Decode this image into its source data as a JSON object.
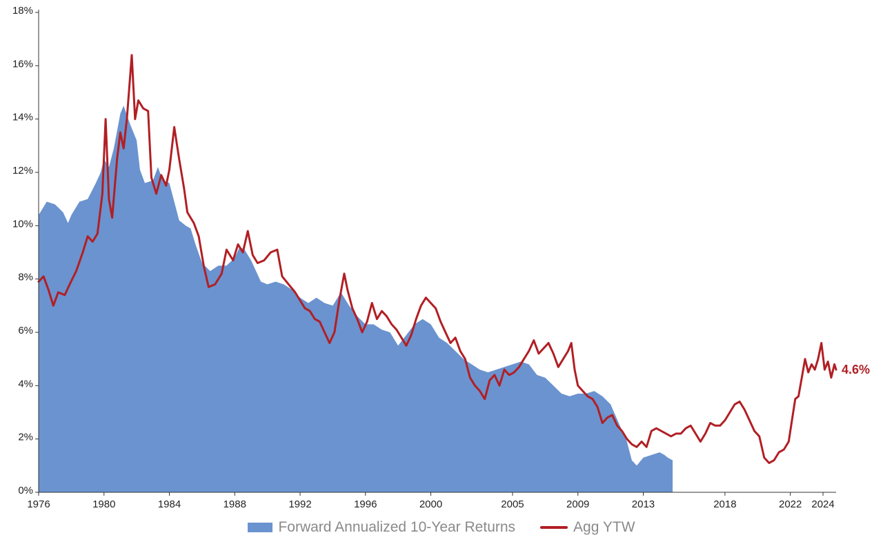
{
  "chart_data": {
    "type": "area+line",
    "title": "",
    "xlabel": "",
    "ylabel": "",
    "y_axis": {
      "min": 0,
      "max": 18,
      "ticks": [
        0,
        2,
        4,
        6,
        8,
        10,
        12,
        14,
        16,
        18
      ],
      "tick_labels": [
        "0%",
        "2%",
        "4%",
        "6%",
        "8%",
        "10%",
        "12%",
        "14%",
        "16%",
        "18%"
      ],
      "unit": "%"
    },
    "x_axis": {
      "min": 1976,
      "max": 2024.8,
      "tick_years": [
        1976,
        1980,
        1984,
        1988,
        1992,
        1996,
        2000,
        2005,
        2009,
        2013,
        2018,
        2022,
        2024
      ],
      "tick_labels": [
        "1976",
        "1980",
        "1984",
        "1988",
        "1992",
        "1996",
        "2000",
        "2005",
        "2009",
        "2013",
        "2018",
        "2022",
        "2024"
      ]
    },
    "grid": false,
    "legend_position": "bottom-center",
    "colors": {
      "area": "#6b93cf",
      "line": "#b11f24"
    },
    "series": [
      {
        "name": "Forward Annualized 10-Year Returns",
        "type": "area",
        "points": [
          [
            1976.0,
            10.4
          ],
          [
            1976.5,
            10.9
          ],
          [
            1977.0,
            10.8
          ],
          [
            1977.5,
            10.5
          ],
          [
            1977.8,
            10.1
          ],
          [
            1978.0,
            10.4
          ],
          [
            1978.5,
            10.9
          ],
          [
            1979.0,
            11.0
          ],
          [
            1979.5,
            11.6
          ],
          [
            1979.8,
            12.0
          ],
          [
            1980.0,
            12.5
          ],
          [
            1980.3,
            12.2
          ],
          [
            1980.6,
            12.9
          ],
          [
            1981.0,
            14.2
          ],
          [
            1981.2,
            14.5
          ],
          [
            1981.6,
            13.8
          ],
          [
            1982.0,
            13.2
          ],
          [
            1982.2,
            12.1
          ],
          [
            1982.5,
            11.6
          ],
          [
            1983.0,
            11.7
          ],
          [
            1983.3,
            12.2
          ],
          [
            1983.6,
            11.7
          ],
          [
            1984.0,
            11.6
          ],
          [
            1984.3,
            10.9
          ],
          [
            1984.6,
            10.2
          ],
          [
            1985.0,
            10.0
          ],
          [
            1985.3,
            9.9
          ],
          [
            1985.6,
            9.3
          ],
          [
            1986.0,
            8.6
          ],
          [
            1986.5,
            8.3
          ],
          [
            1987.0,
            8.5
          ],
          [
            1987.5,
            8.5
          ],
          [
            1988.0,
            8.8
          ],
          [
            1988.3,
            9.2
          ],
          [
            1988.6,
            9.1
          ],
          [
            1989.0,
            8.7
          ],
          [
            1989.3,
            8.3
          ],
          [
            1989.6,
            7.9
          ],
          [
            1990.0,
            7.8
          ],
          [
            1990.5,
            7.9
          ],
          [
            1991.0,
            7.8
          ],
          [
            1991.5,
            7.6
          ],
          [
            1992.0,
            7.3
          ],
          [
            1992.5,
            7.1
          ],
          [
            1993.0,
            7.3
          ],
          [
            1993.5,
            7.1
          ],
          [
            1994.0,
            7.0
          ],
          [
            1994.5,
            7.5
          ],
          [
            1995.0,
            7.0
          ],
          [
            1995.5,
            6.6
          ],
          [
            1996.0,
            6.3
          ],
          [
            1996.5,
            6.3
          ],
          [
            1997.0,
            6.1
          ],
          [
            1997.5,
            6.0
          ],
          [
            1998.0,
            5.5
          ],
          [
            1998.5,
            5.9
          ],
          [
            1999.0,
            6.3
          ],
          [
            1999.5,
            6.5
          ],
          [
            2000.0,
            6.3
          ],
          [
            2000.5,
            5.8
          ],
          [
            2001.0,
            5.6
          ],
          [
            2001.5,
            5.3
          ],
          [
            2002.0,
            5.0
          ],
          [
            2002.5,
            4.8
          ],
          [
            2003.0,
            4.6
          ],
          [
            2003.5,
            4.5
          ],
          [
            2004.0,
            4.6
          ],
          [
            2004.5,
            4.7
          ],
          [
            2005.0,
            4.8
          ],
          [
            2005.5,
            4.9
          ],
          [
            2006.0,
            4.8
          ],
          [
            2006.5,
            4.4
          ],
          [
            2007.0,
            4.3
          ],
          [
            2007.5,
            4.0
          ],
          [
            2008.0,
            3.7
          ],
          [
            2008.5,
            3.6
          ],
          [
            2009.0,
            3.7
          ],
          [
            2009.5,
            3.7
          ],
          [
            2010.0,
            3.8
          ],
          [
            2010.5,
            3.6
          ],
          [
            2011.0,
            3.3
          ],
          [
            2011.5,
            2.6
          ],
          [
            2012.0,
            1.9
          ],
          [
            2012.3,
            1.2
          ],
          [
            2012.6,
            1.0
          ],
          [
            2013.0,
            1.3
          ],
          [
            2013.5,
            1.4
          ],
          [
            2014.0,
            1.5
          ],
          [
            2014.3,
            1.4
          ],
          [
            2014.5,
            1.3
          ],
          [
            2014.8,
            1.2
          ]
        ]
      },
      {
        "name": "Agg YTW",
        "type": "line",
        "end_label": "4.6%",
        "points": [
          [
            1976.0,
            7.9
          ],
          [
            1976.3,
            8.1
          ],
          [
            1976.6,
            7.6
          ],
          [
            1976.9,
            7.0
          ],
          [
            1977.2,
            7.5
          ],
          [
            1977.6,
            7.4
          ],
          [
            1977.9,
            7.8
          ],
          [
            1978.3,
            8.3
          ],
          [
            1978.7,
            9.0
          ],
          [
            1979.0,
            9.6
          ],
          [
            1979.3,
            9.4
          ],
          [
            1979.6,
            9.7
          ],
          [
            1979.9,
            11.2
          ],
          [
            1980.1,
            14.0
          ],
          [
            1980.3,
            11.0
          ],
          [
            1980.5,
            10.3
          ],
          [
            1980.8,
            12.5
          ],
          [
            1981.0,
            13.5
          ],
          [
            1981.2,
            12.9
          ],
          [
            1981.4,
            14.0
          ],
          [
            1981.7,
            16.4
          ],
          [
            1981.9,
            14.0
          ],
          [
            1982.1,
            14.7
          ],
          [
            1982.4,
            14.4
          ],
          [
            1982.7,
            14.3
          ],
          [
            1982.9,
            11.8
          ],
          [
            1983.2,
            11.2
          ],
          [
            1983.5,
            11.9
          ],
          [
            1983.8,
            11.5
          ],
          [
            1984.0,
            12.1
          ],
          [
            1984.3,
            13.7
          ],
          [
            1984.6,
            12.5
          ],
          [
            1984.9,
            11.4
          ],
          [
            1985.1,
            10.5
          ],
          [
            1985.5,
            10.1
          ],
          [
            1985.8,
            9.6
          ],
          [
            1986.1,
            8.5
          ],
          [
            1986.4,
            7.7
          ],
          [
            1986.8,
            7.8
          ],
          [
            1987.2,
            8.2
          ],
          [
            1987.5,
            9.1
          ],
          [
            1987.9,
            8.7
          ],
          [
            1988.2,
            9.3
          ],
          [
            1988.5,
            9.0
          ],
          [
            1988.8,
            9.8
          ],
          [
            1989.1,
            8.9
          ],
          [
            1989.4,
            8.6
          ],
          [
            1989.8,
            8.7
          ],
          [
            1990.2,
            9.0
          ],
          [
            1990.6,
            9.1
          ],
          [
            1990.9,
            8.1
          ],
          [
            1991.3,
            7.8
          ],
          [
            1991.7,
            7.5
          ],
          [
            1992.0,
            7.2
          ],
          [
            1992.3,
            6.9
          ],
          [
            1992.6,
            6.8
          ],
          [
            1992.9,
            6.5
          ],
          [
            1993.2,
            6.4
          ],
          [
            1993.5,
            6.0
          ],
          [
            1993.8,
            5.6
          ],
          [
            1994.1,
            6.0
          ],
          [
            1994.4,
            7.2
          ],
          [
            1994.7,
            8.2
          ],
          [
            1994.9,
            7.6
          ],
          [
            1995.2,
            6.9
          ],
          [
            1995.5,
            6.5
          ],
          [
            1995.8,
            6.0
          ],
          [
            1996.1,
            6.4
          ],
          [
            1996.4,
            7.1
          ],
          [
            1996.7,
            6.5
          ],
          [
            1997.0,
            6.8
          ],
          [
            1997.3,
            6.6
          ],
          [
            1997.6,
            6.3
          ],
          [
            1997.9,
            6.1
          ],
          [
            1998.2,
            5.8
          ],
          [
            1998.5,
            5.5
          ],
          [
            1998.8,
            5.9
          ],
          [
            1999.1,
            6.5
          ],
          [
            1999.4,
            7.0
          ],
          [
            1999.7,
            7.3
          ],
          [
            2000.0,
            7.1
          ],
          [
            2000.3,
            6.9
          ],
          [
            2000.6,
            6.4
          ],
          [
            2000.9,
            6.0
          ],
          [
            2001.2,
            5.6
          ],
          [
            2001.5,
            5.8
          ],
          [
            2001.8,
            5.3
          ],
          [
            2002.1,
            5.0
          ],
          [
            2002.4,
            4.3
          ],
          [
            2002.7,
            4.0
          ],
          [
            2003.0,
            3.8
          ],
          [
            2003.3,
            3.5
          ],
          [
            2003.6,
            4.2
          ],
          [
            2003.9,
            4.4
          ],
          [
            2004.2,
            4.0
          ],
          [
            2004.5,
            4.6
          ],
          [
            2004.8,
            4.4
          ],
          [
            2005.1,
            4.5
          ],
          [
            2005.4,
            4.7
          ],
          [
            2005.7,
            5.0
          ],
          [
            2006.0,
            5.3
          ],
          [
            2006.3,
            5.7
          ],
          [
            2006.6,
            5.2
          ],
          [
            2006.9,
            5.4
          ],
          [
            2007.2,
            5.6
          ],
          [
            2007.5,
            5.2
          ],
          [
            2007.8,
            4.7
          ],
          [
            2008.1,
            5.0
          ],
          [
            2008.4,
            5.3
          ],
          [
            2008.6,
            5.6
          ],
          [
            2008.8,
            4.6
          ],
          [
            2009.0,
            4.0
          ],
          [
            2009.3,
            3.8
          ],
          [
            2009.6,
            3.6
          ],
          [
            2009.9,
            3.5
          ],
          [
            2010.2,
            3.2
          ],
          [
            2010.5,
            2.6
          ],
          [
            2010.8,
            2.8
          ],
          [
            2011.1,
            2.9
          ],
          [
            2011.4,
            2.5
          ],
          [
            2011.7,
            2.3
          ],
          [
            2012.0,
            2.0
          ],
          [
            2012.3,
            1.8
          ],
          [
            2012.6,
            1.7
          ],
          [
            2012.9,
            1.9
          ],
          [
            2013.2,
            1.7
          ],
          [
            2013.5,
            2.3
          ],
          [
            2013.8,
            2.4
          ],
          [
            2014.1,
            2.3
          ],
          [
            2014.4,
            2.2
          ],
          [
            2014.7,
            2.1
          ],
          [
            2015.0,
            2.2
          ],
          [
            2015.3,
            2.2
          ],
          [
            2015.6,
            2.4
          ],
          [
            2015.9,
            2.5
          ],
          [
            2016.2,
            2.2
          ],
          [
            2016.5,
            1.9
          ],
          [
            2016.8,
            2.2
          ],
          [
            2017.1,
            2.6
          ],
          [
            2017.4,
            2.5
          ],
          [
            2017.7,
            2.5
          ],
          [
            2018.0,
            2.7
          ],
          [
            2018.3,
            3.0
          ],
          [
            2018.6,
            3.3
          ],
          [
            2018.9,
            3.4
          ],
          [
            2019.2,
            3.1
          ],
          [
            2019.5,
            2.7
          ],
          [
            2019.8,
            2.3
          ],
          [
            2020.1,
            2.1
          ],
          [
            2020.4,
            1.3
          ],
          [
            2020.7,
            1.1
          ],
          [
            2021.0,
            1.2
          ],
          [
            2021.3,
            1.5
          ],
          [
            2021.6,
            1.6
          ],
          [
            2021.9,
            1.9
          ],
          [
            2022.1,
            2.7
          ],
          [
            2022.3,
            3.5
          ],
          [
            2022.5,
            3.6
          ],
          [
            2022.7,
            4.3
          ],
          [
            2022.9,
            5.0
          ],
          [
            2023.1,
            4.5
          ],
          [
            2023.3,
            4.8
          ],
          [
            2023.5,
            4.6
          ],
          [
            2023.7,
            5.0
          ],
          [
            2023.9,
            5.6
          ],
          [
            2024.1,
            4.6
          ],
          [
            2024.3,
            4.9
          ],
          [
            2024.5,
            4.3
          ],
          [
            2024.7,
            4.8
          ],
          [
            2024.8,
            4.6
          ]
        ]
      }
    ]
  }
}
